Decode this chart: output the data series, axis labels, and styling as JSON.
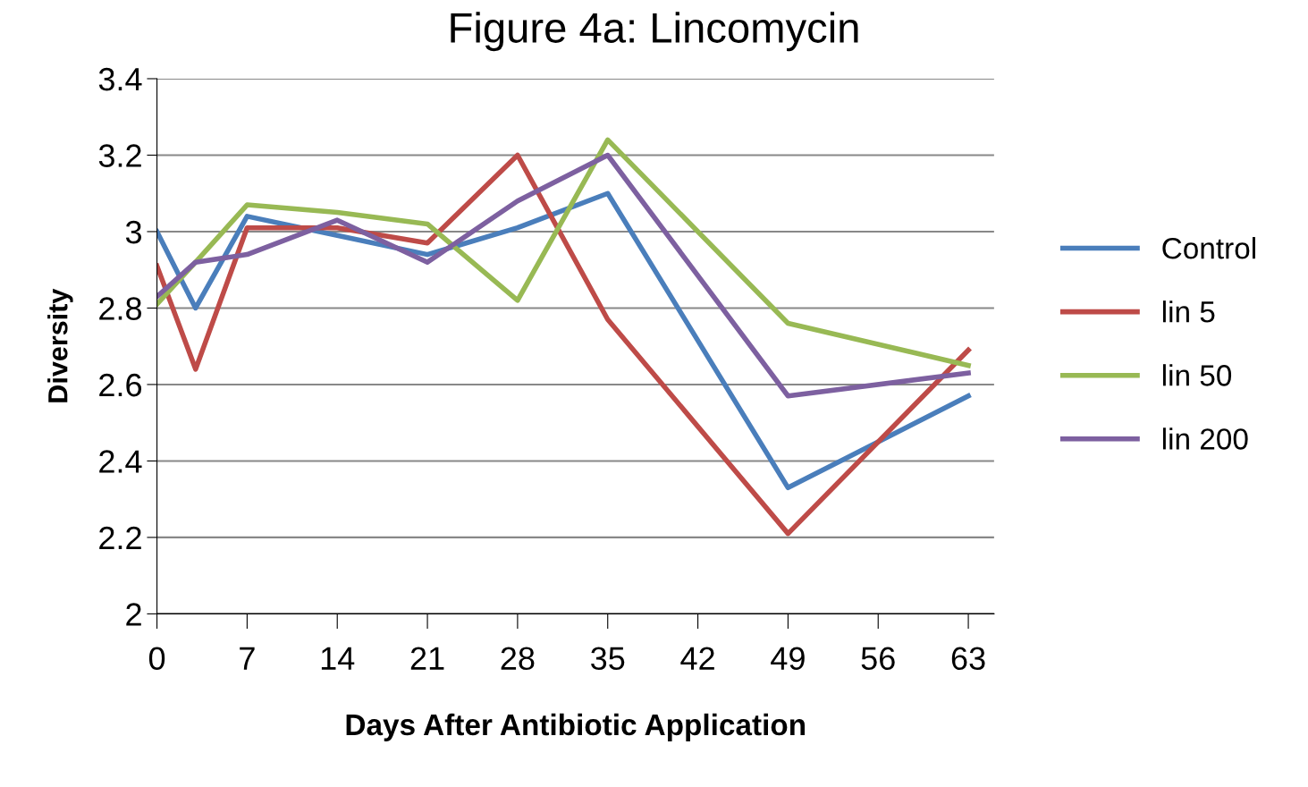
{
  "chart_data": {
    "type": "line",
    "title": "Figure 4a: Lincomycin",
    "xlabel": "Days After Antibiotic Application",
    "ylabel": "Diversity",
    "x": [
      0,
      3,
      7,
      14,
      21,
      28,
      35,
      49,
      63
    ],
    "series": [
      {
        "name": "Control",
        "color": "#4a7ebb",
        "values": [
          3.0,
          2.8,
          3.04,
          2.99,
          2.94,
          3.01,
          3.1,
          2.33,
          2.57
        ]
      },
      {
        "name": "lin 5",
        "color": "#be4b48",
        "values": [
          2.91,
          2.64,
          3.01,
          3.01,
          2.97,
          3.2,
          2.77,
          2.21,
          2.69
        ]
      },
      {
        "name": "lin 50",
        "color": "#98b954",
        "values": [
          2.81,
          2.92,
          3.07,
          3.05,
          3.02,
          2.82,
          3.24,
          2.76,
          2.65
        ]
      },
      {
        "name": "lin 200",
        "color": "#7d60a0",
        "values": [
          2.83,
          2.92,
          2.94,
          3.03,
          2.92,
          3.08,
          3.2,
          2.57,
          2.63
        ]
      }
    ],
    "xlim": [
      0,
      65
    ],
    "xticks": [
      0,
      7,
      14,
      21,
      28,
      35,
      42,
      49,
      56,
      63
    ],
    "ylim": [
      2,
      3.4
    ],
    "yticks": [
      2,
      2.2,
      2.4,
      2.6,
      2.8,
      3,
      3.2,
      3.4
    ],
    "grid": "y",
    "legend": "right",
    "marker": "none",
    "line_style": "solid"
  }
}
